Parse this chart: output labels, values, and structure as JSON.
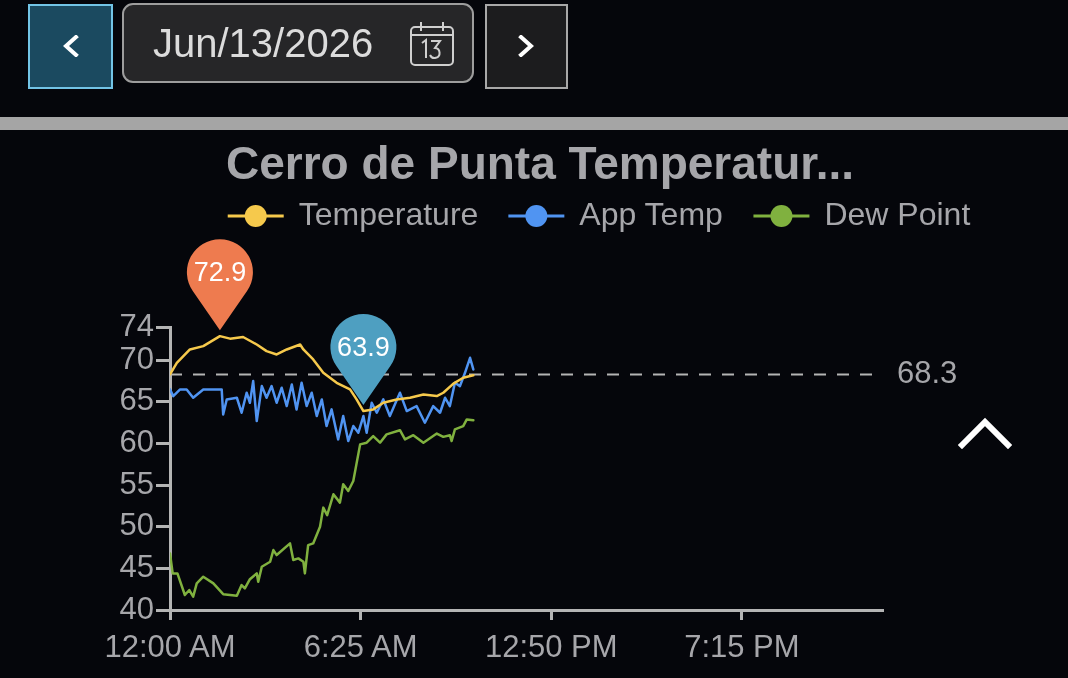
{
  "chart_data": {
    "type": "line",
    "title": "Cerro de Punta Temperatur...",
    "annotations": [
      "Jun/13/2026",
      {
        "text": "72.9",
        "x": 1.68,
        "y": 72.9
      },
      {
        "text": "63.9",
        "x": 6.51,
        "y": 63.9
      }
    ],
    "xlim": [
      0,
      24
    ],
    "xticks": [
      {
        "value": 0,
        "label": "12:00 AM"
      },
      {
        "value": 6.4167,
        "label": "6:25 AM"
      },
      {
        "value": 12.8333,
        "label": "12:50 PM"
      },
      {
        "value": 19.25,
        "label": "7:15 PM"
      }
    ],
    "ylim": [
      40,
      74
    ],
    "yticks": [
      40,
      45,
      50,
      55,
      60,
      65,
      70,
      74
    ],
    "legend": "top",
    "marker": "none",
    "ref_lines": [
      {
        "axis": "y",
        "value": 68.3,
        "label": "68.3",
        "line_style": "dashed",
        "color": "#b4b4b4"
      }
    ],
    "series": [
      {
        "name": "Temperature",
        "color": "#f6c94c",
        "x": [
          0,
          0.23,
          0.67,
          1.12,
          1.68,
          2.02,
          2.46,
          2.92,
          3.25,
          3.59,
          3.93,
          4.38,
          4.49,
          4.82,
          5.16,
          5.61,
          6.06,
          6.28,
          6.51,
          6.84,
          7.18,
          7.63,
          8.08,
          8.53,
          8.98,
          9.2,
          9.54,
          9.87,
          10.21
        ],
        "values": [
          68.3,
          69.7,
          71.3,
          71.7,
          72.9,
          72.6,
          72.8,
          71.9,
          71.1,
          70.7,
          71.3,
          71.9,
          71.3,
          70.1,
          68.5,
          67.3,
          66.5,
          65.3,
          63.9,
          64.1,
          64.9,
          65.3,
          65.5,
          65.9,
          65.7,
          66.1,
          67.2,
          67.9,
          68.2
        ]
      },
      {
        "name": "App Temp",
        "color": "#5094f2",
        "x": [
          0,
          0.11,
          0.34,
          0.56,
          0.78,
          1.12,
          1.74,
          1.79,
          1.91,
          2.25,
          2.41,
          2.58,
          2.69,
          2.8,
          2.92,
          3.09,
          3.25,
          3.42,
          3.59,
          3.76,
          3.93,
          4.1,
          4.26,
          4.43,
          4.6,
          4.77,
          4.94,
          5.11,
          5.27,
          5.44,
          5.66,
          5.83,
          6.0,
          6.17,
          6.34,
          6.51,
          6.62,
          6.79,
          6.96,
          7.18,
          7.4,
          7.74,
          7.97,
          8.3,
          8.58,
          8.86,
          9.09,
          9.26,
          9.42,
          9.59,
          9.76,
          9.93,
          10.1,
          10.21
        ],
        "values": [
          66.5,
          65.7,
          66.5,
          66.5,
          65.5,
          66.5,
          66.5,
          63.5,
          65.3,
          65.5,
          63.7,
          66.1,
          64.9,
          67.5,
          62.7,
          66.9,
          65.5,
          66.9,
          64.9,
          66.7,
          64.5,
          67.1,
          64.1,
          67.3,
          64.5,
          66.1,
          63.3,
          65.3,
          62.1,
          64.1,
          60.5,
          63.3,
          60.3,
          62.1,
          61.3,
          63.3,
          61.3,
          64.9,
          63.7,
          65.3,
          63.3,
          66.1,
          63.9,
          64.5,
          62.5,
          64.5,
          63.7,
          65.5,
          64.5,
          67.3,
          66.9,
          68.5,
          70.3,
          68.9
        ]
      },
      {
        "name": "Dew Point",
        "color": "#80b13f",
        "x": [
          0,
          0.09,
          0.25,
          0.5,
          0.65,
          0.78,
          0.9,
          1.12,
          1.46,
          1.79,
          2.25,
          2.41,
          2.52,
          2.69,
          2.92,
          2.97,
          3.09,
          3.37,
          3.48,
          3.59,
          4.04,
          4.15,
          4.32,
          4.49,
          4.54,
          4.65,
          4.82,
          5.05,
          5.16,
          5.29,
          5.5,
          5.72,
          5.83,
          6.0,
          6.17,
          6.4,
          6.62,
          6.84,
          7.07,
          7.29,
          7.74,
          7.91,
          8.19,
          8.53,
          8.98,
          9.2,
          9.42,
          9.48,
          9.59,
          9.87,
          9.99,
          10.21
        ],
        "values": [
          46.8,
          44.4,
          44.4,
          41.8,
          42.4,
          41.6,
          43.2,
          44.0,
          43.2,
          41.9,
          41.7,
          43.0,
          42.6,
          43.7,
          44.4,
          43.4,
          45.2,
          45.8,
          47.2,
          46.6,
          48.0,
          46.0,
          46.2,
          45.8,
          44.4,
          47.8,
          48.0,
          50.0,
          52.3,
          51.4,
          53.9,
          52.9,
          55.1,
          54.3,
          55.5,
          59.9,
          60.1,
          60.9,
          60.1,
          61.1,
          61.6,
          60.5,
          61.0,
          60.1,
          61.2,
          60.8,
          61.0,
          60.3,
          61.7,
          62.1,
          62.9,
          62.8
        ]
      }
    ]
  }
}
